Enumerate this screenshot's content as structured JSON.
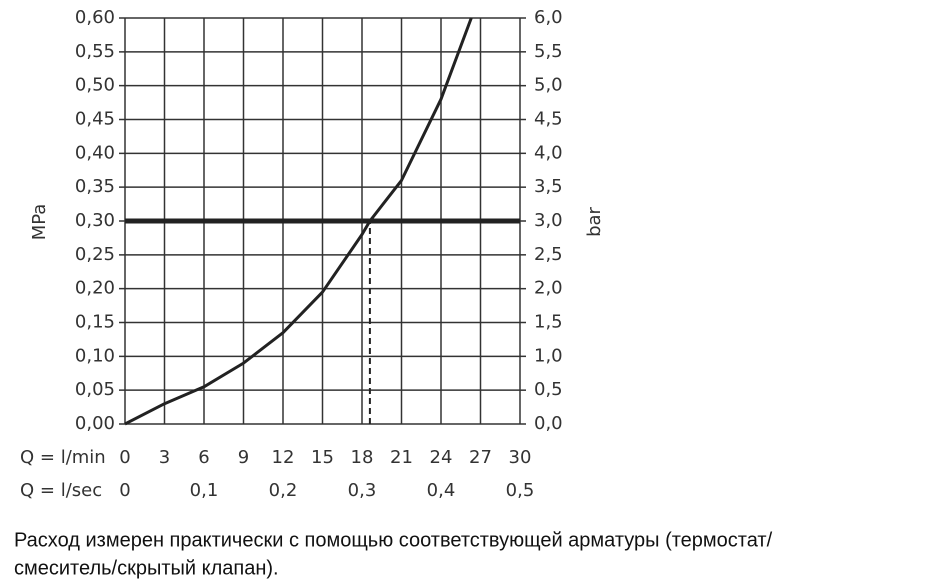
{
  "chart_data": {
    "type": "line",
    "x_label": "Q = l/min",
    "x2_label": "Q = l/sec",
    "y_label": "MPa",
    "y2_label": "bar",
    "x": [
      0,
      3,
      6,
      9,
      12,
      15,
      18,
      18.6,
      21,
      24,
      26.3
    ],
    "series": [
      {
        "color": "#222222",
        "values": [
          0,
          0.03,
          0.055,
          0.09,
          0.135,
          0.195,
          0.28,
          0.3,
          0.36,
          0.48,
          0.6
        ]
      }
    ],
    "xlim": [
      0,
      30
    ],
    "xticks": [
      0,
      3,
      6,
      9,
      12,
      15,
      18,
      21,
      24,
      27,
      30
    ],
    "x2lim": [
      0,
      0.5
    ],
    "x2ticks": [
      0,
      {
        "value": 0.1,
        "label": "0,1"
      },
      {
        "value": 0.2,
        "label": "0,2"
      },
      {
        "value": 0.3,
        "label": "0,3"
      },
      {
        "value": 0.4,
        "label": "0,4"
      },
      {
        "value": 0.5,
        "label": "0,5"
      }
    ],
    "ylim": [
      0,
      0.6
    ],
    "yticks": [
      {
        "value": 0,
        "label": "0,00"
      },
      {
        "value": 0.05,
        "label": "0,05"
      },
      {
        "value": 0.1,
        "label": "0,10"
      },
      {
        "value": 0.15,
        "label": "0,15"
      },
      {
        "value": 0.2,
        "label": "0,20"
      },
      {
        "value": 0.25,
        "label": "0,25"
      },
      {
        "value": 0.3,
        "label": "0,30"
      },
      {
        "value": 0.35,
        "label": "0,35"
      },
      {
        "value": 0.4,
        "label": "0,40"
      },
      {
        "value": 0.45,
        "label": "0,45"
      },
      {
        "value": 0.5,
        "label": "0,50"
      },
      {
        "value": 0.55,
        "label": "0,55"
      },
      {
        "value": 0.6,
        "label": "0,60"
      }
    ],
    "y2lim": [
      0,
      6
    ],
    "y2ticks": [
      {
        "value": 0,
        "label": "0,0"
      },
      {
        "value": 0.5,
        "label": "0,5"
      },
      {
        "value": 1,
        "label": "1,0"
      },
      {
        "value": 1.5,
        "label": "1,5"
      },
      {
        "value": 2,
        "label": "2,0"
      },
      {
        "value": 2.5,
        "label": "2,5"
      },
      {
        "value": 3,
        "label": "3,0"
      },
      {
        "value": 3.5,
        "label": "3,5"
      },
      {
        "value": 4,
        "label": "4,0"
      },
      {
        "value": 4.5,
        "label": "4,5"
      },
      {
        "value": 5,
        "label": "5,0"
      },
      {
        "value": 5.5,
        "label": "5,5"
      },
      {
        "value": 6,
        "label": "6,0"
      }
    ],
    "hline": 0.3,
    "vline": 18.6,
    "grid": true,
    "caption": [
      "Расход измерен практически с помощью соответствующей арматуры (термостат/",
      "смеситель/скрытый клапан)."
    ]
  }
}
